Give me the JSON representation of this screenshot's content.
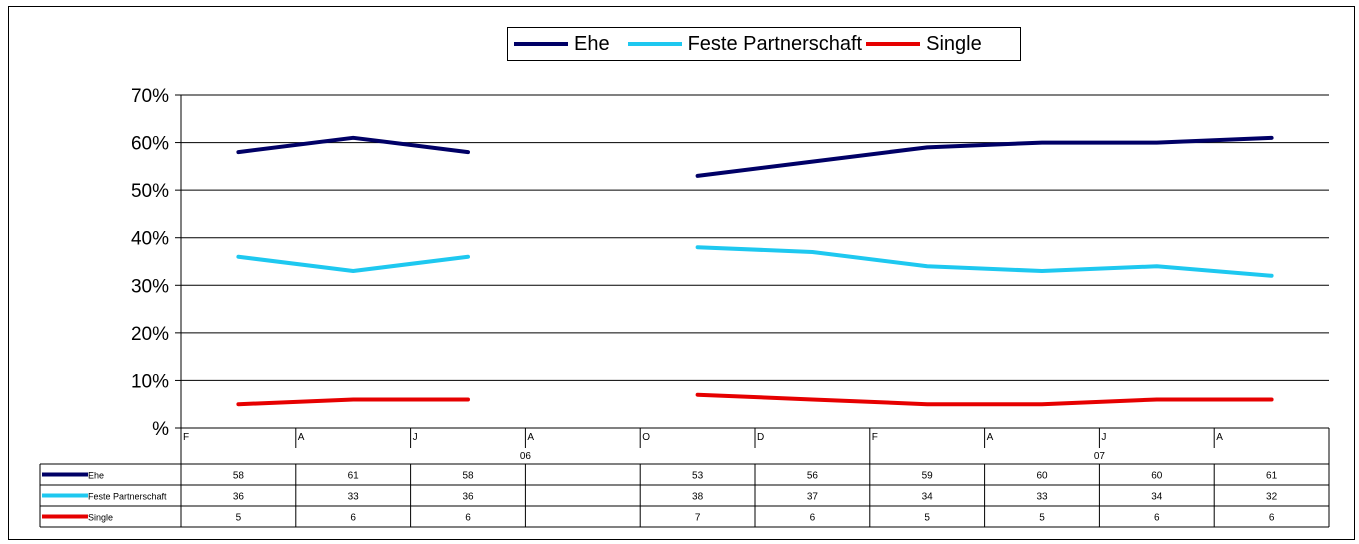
{
  "chart_data": {
    "type": "line",
    "title": "",
    "xlabel": "",
    "ylabel": "",
    "ylim": [
      0,
      70
    ],
    "y_ticks": [
      "%",
      "10%",
      "20%",
      "30%",
      "40%",
      "50%",
      "60%",
      "70%"
    ],
    "grid": true,
    "legend_position": "top",
    "periods": [
      "F",
      "A",
      "J",
      "A",
      "O",
      "D",
      "F",
      "A",
      "J",
      "A"
    ],
    "years": [
      {
        "label": "06",
        "start": 0,
        "end": 6
      },
      {
        "label": "07",
        "start": 6,
        "end": 10
      }
    ],
    "series": [
      {
        "name": "Ehe",
        "color": "#000066",
        "values": [
          58,
          61,
          58,
          null,
          53,
          56,
          59,
          60,
          60,
          61
        ]
      },
      {
        "name": "Feste Partnerschaft",
        "color": "#1ec8f0",
        "values": [
          36,
          33,
          36,
          null,
          38,
          37,
          34,
          33,
          34,
          32
        ]
      },
      {
        "name": "Single",
        "color": "#e60000",
        "values": [
          5,
          6,
          6,
          null,
          7,
          6,
          5,
          5,
          6,
          6
        ]
      }
    ]
  }
}
